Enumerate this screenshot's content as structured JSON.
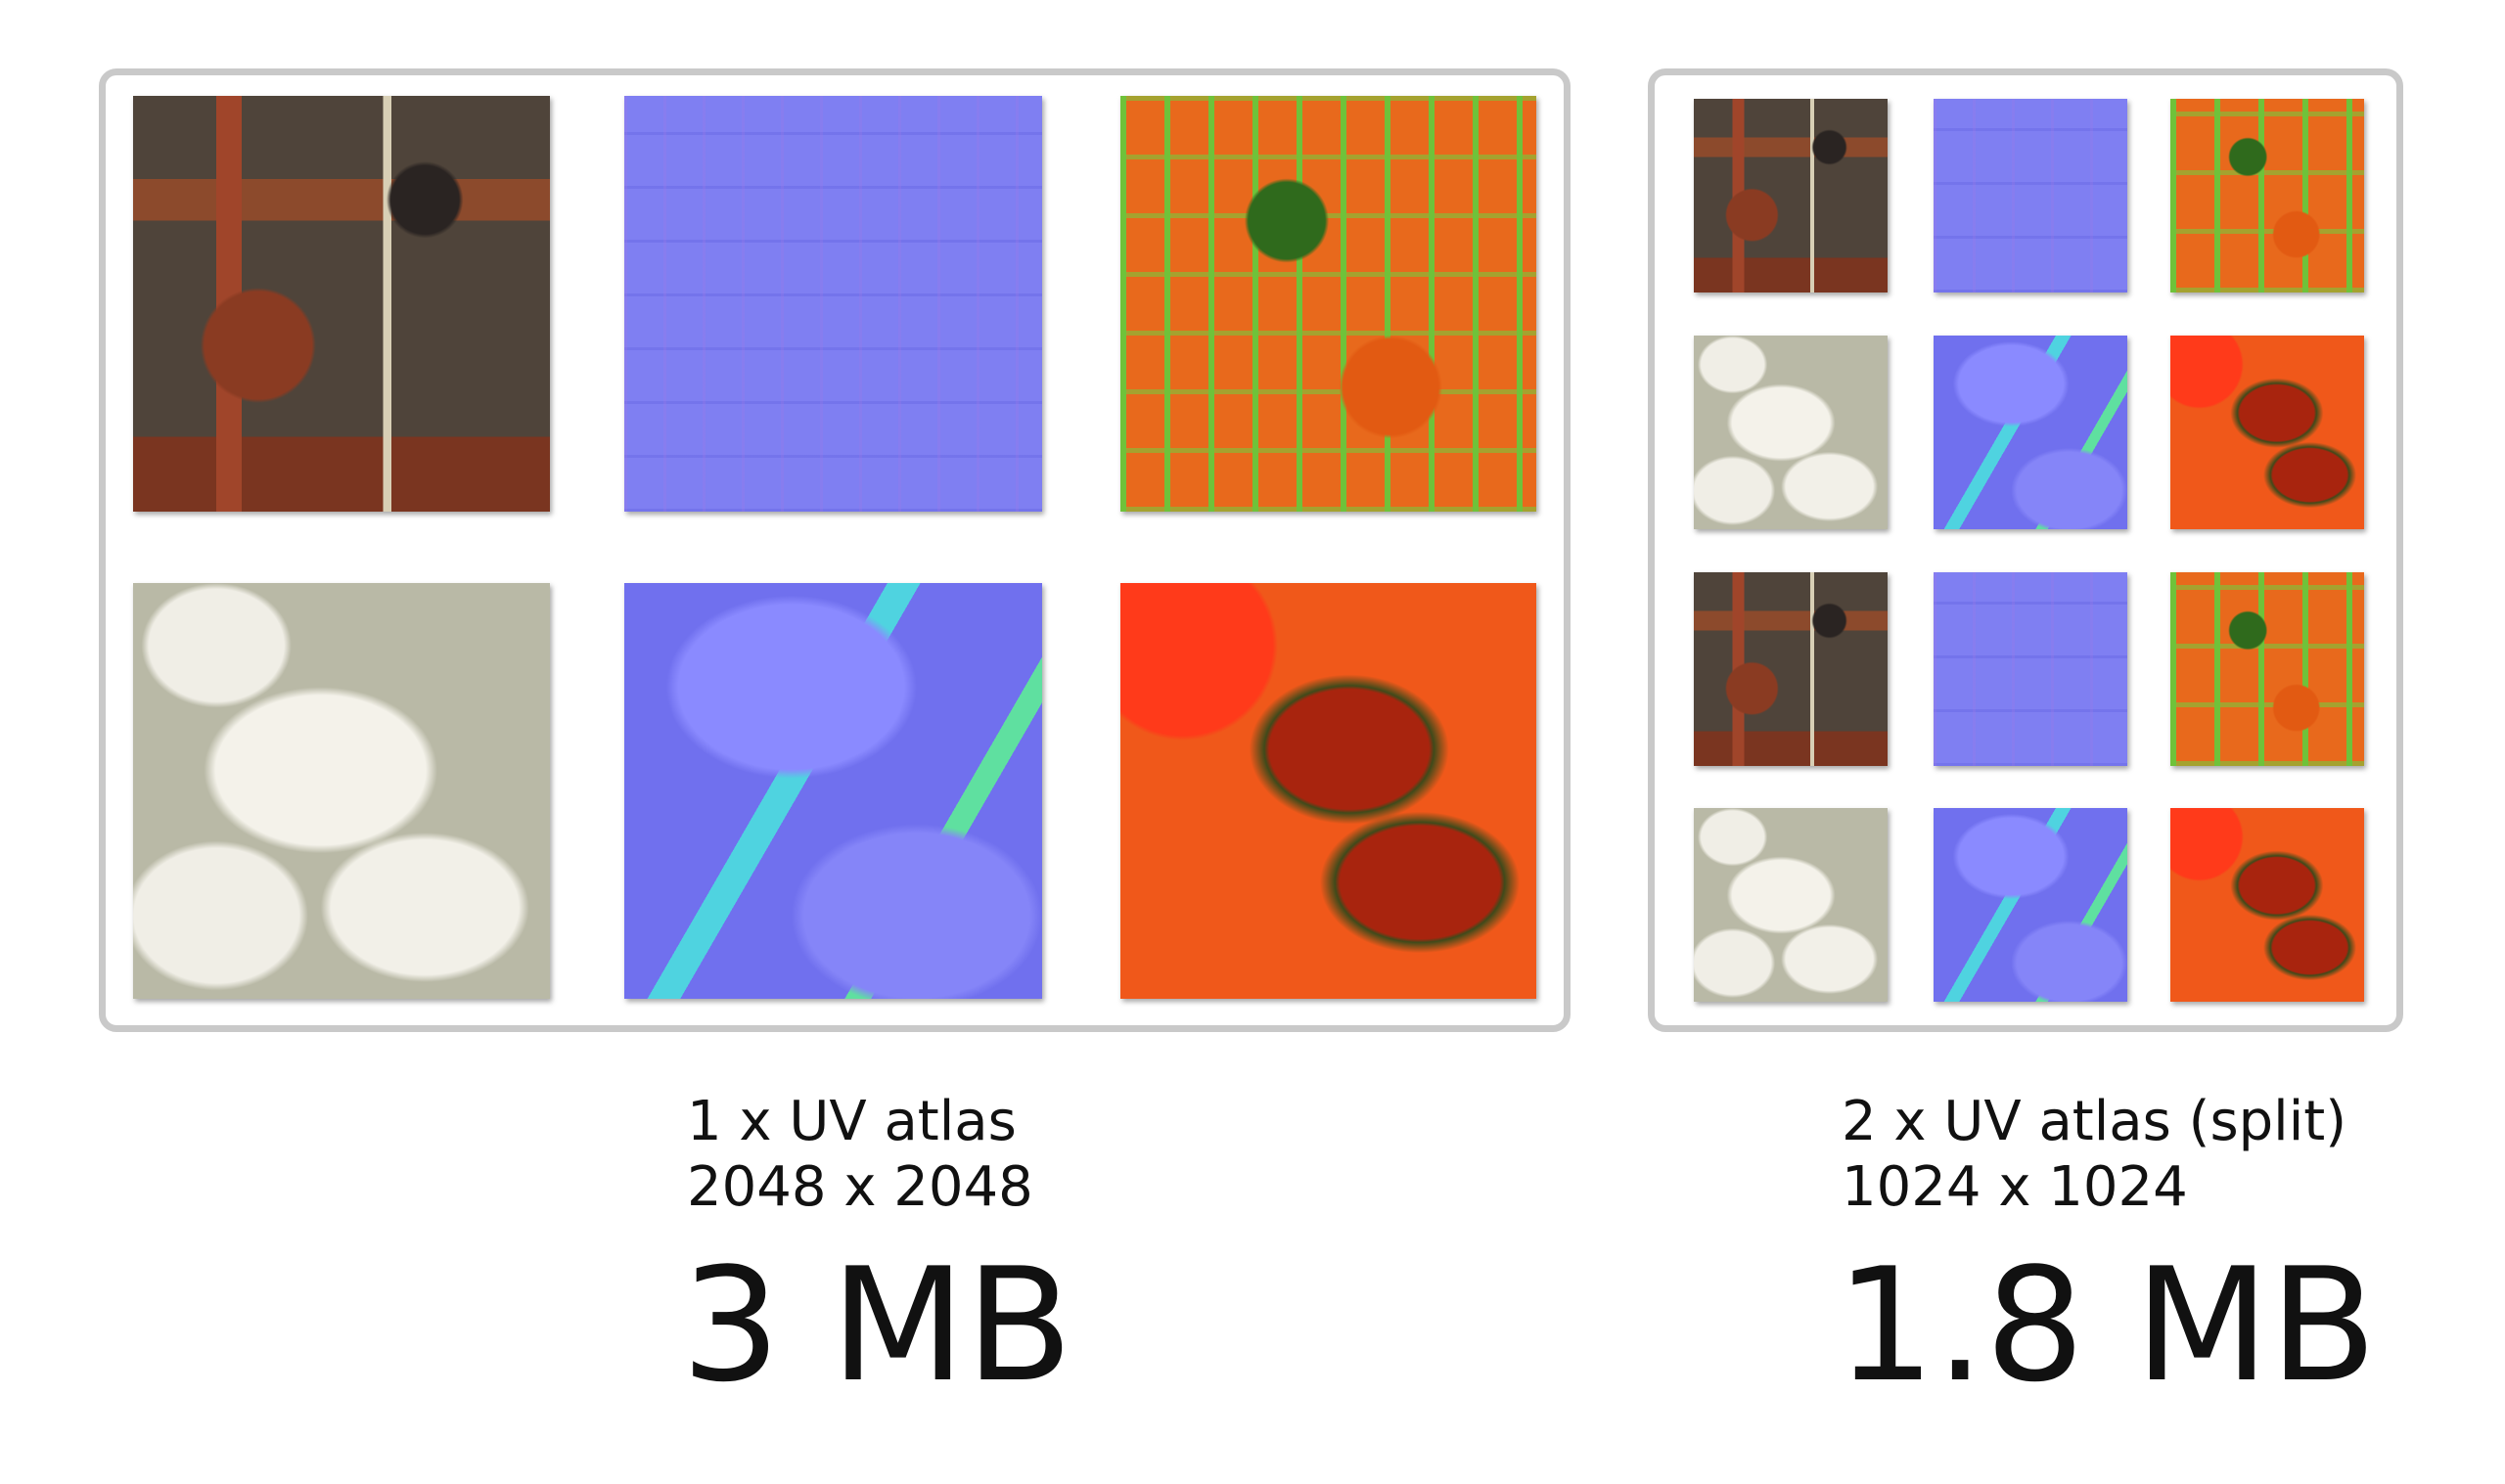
{
  "left": {
    "caption": [
      "1 x UV atlas",
      "2048 x 2048"
    ],
    "size": "3 MB"
  },
  "right": {
    "caption": [
      "2 x UV atlas (split)",
      "1024 x 1024"
    ],
    "size": "1.8 MB"
  }
}
